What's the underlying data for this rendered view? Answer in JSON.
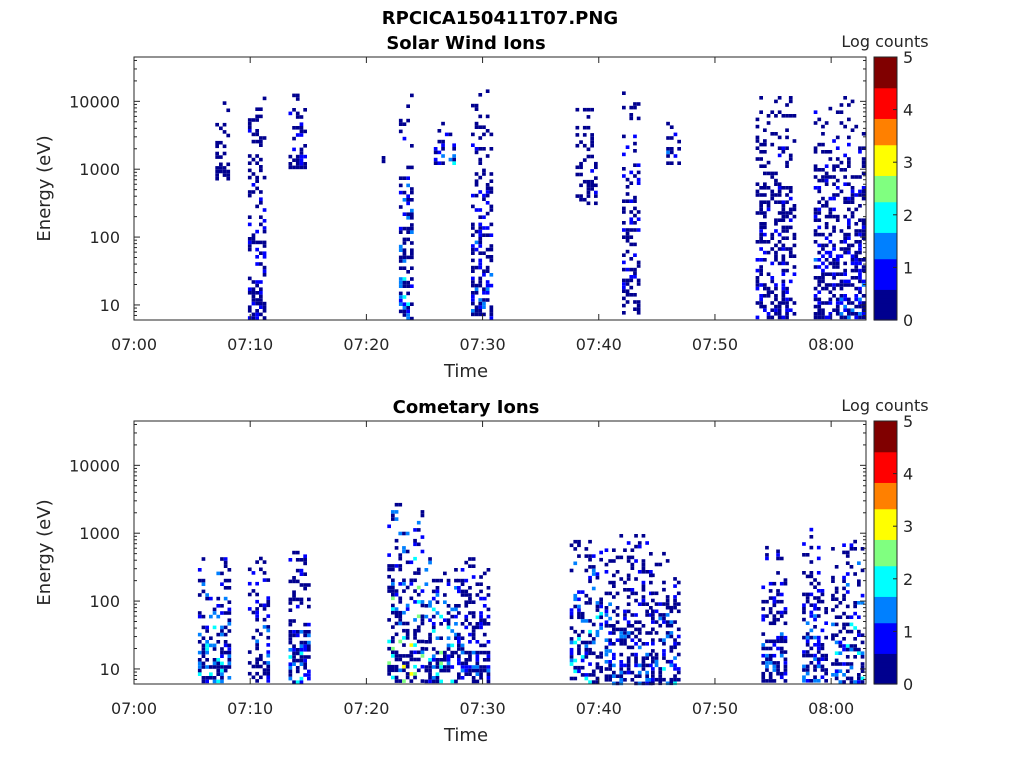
{
  "figure_title": "RPCICA150411T07.PNG",
  "colormap": [
    "#00008f",
    "#0000ff",
    "#0080ff",
    "#00ffff",
    "#80ff80",
    "#ffff00",
    "#ff8000",
    "#ff0000",
    "#800000"
  ],
  "chart_data": [
    {
      "type": "heatmap",
      "title": "Solar Wind Ions",
      "xlabel": "Time",
      "ylabel": "Energy (eV)",
      "y_scale": "log",
      "x_ticks": [
        "07:00",
        "07:10",
        "07:20",
        "07:30",
        "07:40",
        "07:50",
        "08:00"
      ],
      "y_ticks": [
        "10",
        "100",
        "1000",
        "10000"
      ],
      "colorbar": {
        "label": "Log counts",
        "range": [
          0,
          5
        ],
        "ticks": [
          "0",
          "1",
          "2",
          "3",
          "4",
          "5"
        ]
      },
      "x_range_min": [
        0,
        63
      ],
      "y_range_eV": [
        6,
        45000
      ],
      "bursts": [
        {
          "t0": 7.0,
          "t1": 8.4,
          "e0": 700,
          "e1": 10000,
          "lvl": 0.6
        },
        {
          "t0": 9.8,
          "t1": 11.4,
          "e0": 6,
          "e1": 15000,
          "lvl": 0.9
        },
        {
          "t0": 13.3,
          "t1": 14.9,
          "e0": 900,
          "e1": 13000,
          "lvl": 1.2
        },
        {
          "t0": 21.0,
          "t1": 21.5,
          "e0": 1200,
          "e1": 2000,
          "lvl": 2.0
        },
        {
          "t0": 22.8,
          "t1": 24.2,
          "e0": 6,
          "e1": 13000,
          "lvl": 1.6
        },
        {
          "t0": 25.8,
          "t1": 27.8,
          "e0": 1100,
          "e1": 5000,
          "lvl": 1.4
        },
        {
          "t0": 29.0,
          "t1": 30.8,
          "e0": 6,
          "e1": 15000,
          "lvl": 1.0
        },
        {
          "t0": 38.0,
          "t1": 40.0,
          "e0": 300,
          "e1": 8000,
          "lvl": 0.6
        },
        {
          "t0": 42.0,
          "t1": 43.6,
          "e0": 6,
          "e1": 14000,
          "lvl": 0.9
        },
        {
          "t0": 45.8,
          "t1": 47.0,
          "e0": 1200,
          "e1": 5000,
          "lvl": 1.4
        },
        {
          "t0": 53.5,
          "t1": 57.0,
          "e0": 6,
          "e1": 12000,
          "lvl": 0.8
        },
        {
          "t0": 58.5,
          "t1": 63.0,
          "e0": 6,
          "e1": 12000,
          "lvl": 1.0
        }
      ]
    },
    {
      "type": "heatmap",
      "title": "Cometary Ions",
      "xlabel": "Time",
      "ylabel": "Energy (eV)",
      "y_scale": "log",
      "x_ticks": [
        "07:00",
        "07:10",
        "07:20",
        "07:30",
        "07:40",
        "07:50",
        "08:00"
      ],
      "y_ticks": [
        "10",
        "100",
        "1000",
        "10000"
      ],
      "colorbar": {
        "label": "Log counts",
        "range": [
          0,
          5
        ],
        "ticks": [
          "0",
          "1",
          "2",
          "3",
          "4",
          "5"
        ]
      },
      "x_range_min": [
        0,
        63
      ],
      "y_range_eV": [
        6,
        45000
      ],
      "bursts": [
        {
          "t0": 5.5,
          "t1": 8.5,
          "e0": 6,
          "e1": 500,
          "lvl": 1.8
        },
        {
          "t0": 9.8,
          "t1": 11.8,
          "e0": 6,
          "e1": 450,
          "lvl": 1.2
        },
        {
          "t0": 13.3,
          "t1": 15.2,
          "e0": 6,
          "e1": 550,
          "lvl": 1.5
        },
        {
          "t0": 21.8,
          "t1": 25.0,
          "e0": 6,
          "e1": 2800,
          "lvl": 2.4
        },
        {
          "t0": 25.0,
          "t1": 27.8,
          "e0": 6,
          "e1": 500,
          "lvl": 2.0
        },
        {
          "t0": 27.8,
          "t1": 30.8,
          "e0": 6,
          "e1": 500,
          "lvl": 1.1
        },
        {
          "t0": 37.5,
          "t1": 40.5,
          "e0": 6,
          "e1": 900,
          "lvl": 1.8
        },
        {
          "t0": 40.5,
          "t1": 44.5,
          "e0": 6,
          "e1": 1100,
          "lvl": 1.3
        },
        {
          "t0": 44.5,
          "t1": 47.2,
          "e0": 6,
          "e1": 600,
          "lvl": 1.6
        },
        {
          "t0": 54.0,
          "t1": 56.2,
          "e0": 6,
          "e1": 650,
          "lvl": 1.1
        },
        {
          "t0": 57.5,
          "t1": 59.6,
          "e0": 6,
          "e1": 1200,
          "lvl": 1.2
        },
        {
          "t0": 60.0,
          "t1": 63.0,
          "e0": 6,
          "e1": 800,
          "lvl": 1.6
        }
      ]
    }
  ]
}
